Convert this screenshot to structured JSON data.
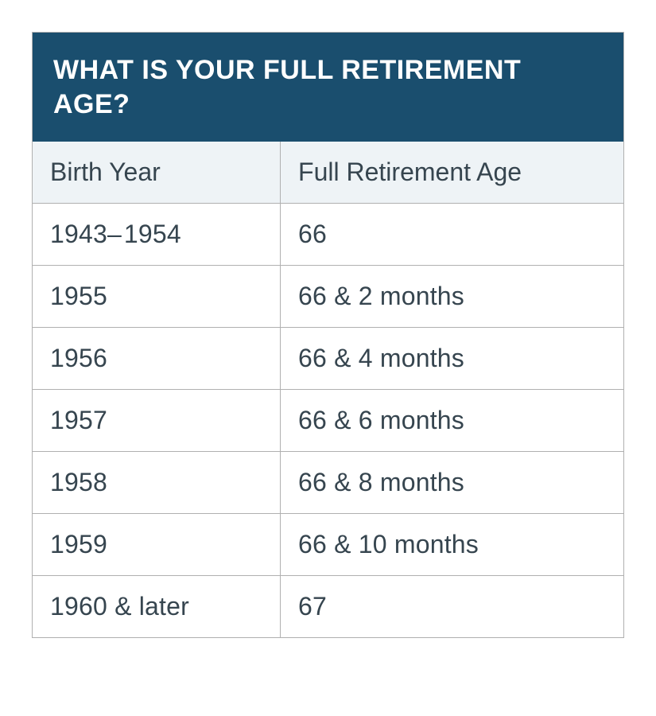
{
  "table": {
    "type": "table",
    "title": "WHAT IS YOUR FULL RETIREMENT AGE?",
    "columns": [
      "Birth Year",
      "Full Retirement Age"
    ],
    "rows": [
      [
        "1943– 1954",
        "66"
      ],
      [
        "1955",
        "66 & 2 months"
      ],
      [
        "1956",
        "66 & 4 months"
      ],
      [
        "1957",
        "66 & 6 months"
      ],
      [
        "1958",
        "66 & 8 months"
      ],
      [
        "1959",
        "66 & 10 months"
      ],
      [
        "1960 & later",
        "67"
      ]
    ],
    "column_widths_pct": [
      42,
      58
    ],
    "title_bg_color": "#1a4e6e",
    "title_text_color": "#ffffff",
    "title_fontsize": 34,
    "title_fontweight": 700,
    "header_bg_color": "#eef3f6",
    "header_text_color": "#36454f",
    "header_fontsize": 32,
    "body_bg_color": "#ffffff",
    "cell_text_color": "#36454f",
    "cell_fontsize": 32,
    "border_color": "#b0b0b0",
    "border_width": 1,
    "cell_padding": "20px 22px",
    "title_padding": "26px 26px"
  }
}
